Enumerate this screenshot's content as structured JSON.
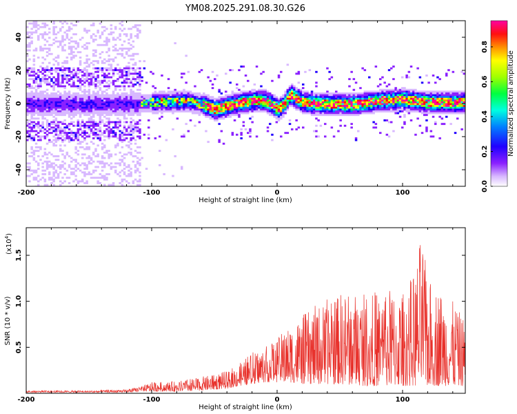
{
  "title": "YM08.2025.291.08.30.G26",
  "colors": {
    "snr_line": "#e8302a",
    "axis": "#000000",
    "background": "#ffffff"
  },
  "chart_data": [
    {
      "type": "heatmap",
      "name": "spectrogram",
      "xlabel": "Height of straight line (km)",
      "ylabel": "Frequency (Hz)",
      "xlim": [
        -200,
        150
      ],
      "ylim": [
        -50,
        50
      ],
      "xticks": [
        -200,
        -100,
        0,
        100
      ],
      "xtick_labels": [
        "-200",
        "-100",
        "0",
        "100"
      ],
      "yticks": [
        -40,
        -20,
        0,
        20,
        40
      ],
      "ytick_labels": [
        "-40",
        "-20",
        "0",
        "20",
        "40"
      ],
      "colorbar": {
        "label": "Normalized spectral amplitude",
        "range": [
          0,
          0.95
        ],
        "ticks": [
          0,
          0.2,
          0.4,
          0.6,
          0.8
        ],
        "tick_labels": [
          "0.0",
          "0.2",
          "0.4",
          "0.6",
          "0.8"
        ],
        "colormap": [
          "#ffffff",
          "#c9a0ff",
          "#7a00ff",
          "#0000ff",
          "#00bfff",
          "#00ff80",
          "#30ff00",
          "#ffff00",
          "#ff8000",
          "#ff0000",
          "#ff00a0"
        ]
      },
      "center_frequency_track": {
        "x": [
          -200,
          -120,
          -100,
          -75,
          -60,
          -50,
          -40,
          -30,
          -20,
          -10,
          -5,
          0,
          5,
          10,
          20,
          40,
          60,
          80,
          100,
          120,
          150
        ],
        "y": [
          0,
          0,
          1,
          2,
          0,
          -3,
          -1,
          1,
          2,
          2,
          0,
          -3,
          0,
          6,
          1,
          0,
          0,
          2,
          3,
          1,
          1
        ]
      }
    },
    {
      "type": "line",
      "name": "snr",
      "xlabel": "Height of straight line (km)",
      "ylabel": "SNR (10 * v/v)",
      "scale_note": "(x10",
      "scale_exp": "4",
      "xlim": [
        -200,
        150
      ],
      "ylim": [
        0,
        1.8
      ],
      "xticks": [
        -200,
        -100,
        0,
        100
      ],
      "xtick_labels": [
        "-200",
        "-100",
        "0",
        "100"
      ],
      "yticks": [
        0.5,
        1.0,
        1.5
      ],
      "ytick_labels": [
        "0.5",
        "1.0",
        "1.5"
      ],
      "envelope": {
        "x": [
          -200,
          -150,
          -120,
          -110,
          -100,
          -80,
          -60,
          -40,
          -30,
          -20,
          -10,
          0,
          10,
          20,
          30,
          50,
          70,
          90,
          100,
          110,
          115,
          120,
          130,
          140,
          150
        ],
        "peak": [
          0.03,
          0.03,
          0.04,
          0.07,
          0.12,
          0.13,
          0.18,
          0.24,
          0.33,
          0.45,
          0.5,
          0.6,
          0.75,
          0.85,
          0.95,
          1.1,
          1.1,
          1.15,
          1.1,
          1.35,
          1.75,
          1.25,
          1.15,
          1.0,
          0.8
        ],
        "base": [
          0.01,
          0.01,
          0.01,
          0.02,
          0.02,
          0.02,
          0.03,
          0.05,
          0.08,
          0.1,
          0.12,
          0.12,
          0.12,
          0.1,
          0.1,
          0.1,
          0.08,
          0.08,
          0.08,
          0.08,
          0.08,
          0.08,
          0.08,
          0.08,
          0.08
        ]
      }
    }
  ]
}
